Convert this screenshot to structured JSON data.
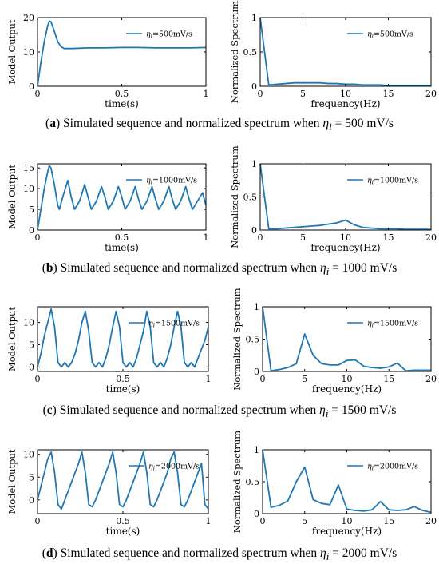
{
  "panels": [
    {
      "id": "a",
      "letter": "a",
      "caption_text": "Simulated sequence and normalized spectrum when",
      "eta_symbol": "η",
      "eta_sub": "i",
      "caption_value": "= 500 mV/s",
      "time": {
        "type": "line",
        "ylabel": "Model Output",
        "xlabel": "time(s)",
        "xlim": [
          0,
          1
        ],
        "ylim": [
          0,
          20
        ],
        "xticks": [
          0,
          0.5,
          1
        ],
        "yticks": [
          0,
          10,
          20
        ],
        "legend": "ηi=500mV/s",
        "legend_position": "top-right",
        "series": [
          {
            "x": [
              0,
              0.02,
              0.04,
              0.06,
              0.07,
              0.08,
              0.1,
              0.12,
              0.14,
              0.16,
              0.2,
              0.3,
              0.4,
              0.5,
              0.6,
              0.7,
              0.8,
              0.9,
              1.0
            ],
            "y": [
              0,
              7,
              13,
              17.5,
              19,
              18.8,
              16,
              13,
              11.5,
              11,
              11,
              11.2,
              11.2,
              11.3,
              11.3,
              11.2,
              11.2,
              11.2,
              11.3
            ]
          }
        ]
      },
      "spectrum": {
        "type": "line",
        "ylabel": "Normalized Spectrum",
        "xlabel": "frequency(Hz)",
        "xlim": [
          0,
          20
        ],
        "ylim": [
          0,
          1
        ],
        "xticks": [
          0,
          5,
          10,
          15,
          20
        ],
        "yticks": [
          0,
          0.5,
          1
        ],
        "legend": "ηi=500mV/s",
        "legend_position": "top-right",
        "series": [
          {
            "x": [
              0,
              1,
              2,
              3,
              4,
              5,
              6,
              7,
              8,
              9,
              10,
              11,
              12,
              13,
              14,
              15,
              16,
              17,
              18,
              19,
              20
            ],
            "y": [
              1,
              0.02,
              0.03,
              0.04,
              0.05,
              0.05,
              0.05,
              0.05,
              0.04,
              0.04,
              0.03,
              0.03,
              0.02,
              0.02,
              0.02,
              0.01,
              0.01,
              0.01,
              0.01,
              0.01,
              0.01
            ]
          }
        ]
      }
    },
    {
      "id": "b",
      "letter": "b",
      "caption_text": "Simulated sequence and normalized spectrum when",
      "eta_symbol": "η",
      "eta_sub": "i",
      "caption_value": "= 1000 mV/s",
      "time": {
        "type": "line",
        "ylabel": "Model Output",
        "xlabel": "time(s)",
        "xlim": [
          0,
          1
        ],
        "ylim": [
          0,
          16
        ],
        "xticks": [
          0,
          0.5,
          1
        ],
        "yticks": [
          0,
          5,
          10,
          15
        ],
        "legend": "ηi=1000mV/s",
        "legend_position": "top-right",
        "series": [
          {
            "x": [
              0,
              0.02,
              0.04,
              0.06,
              0.07,
              0.08,
              0.1,
              0.12,
              0.13,
              0.15,
              0.18,
              0.2,
              0.22,
              0.25,
              0.28,
              0.3,
              0.32,
              0.35,
              0.38,
              0.4,
              0.42,
              0.45,
              0.48,
              0.5,
              0.52,
              0.55,
              0.58,
              0.6,
              0.62,
              0.65,
              0.68,
              0.7,
              0.72,
              0.75,
              0.78,
              0.8,
              0.82,
              0.85,
              0.88,
              0.9,
              0.92,
              0.95,
              0.98,
              1.0
            ],
            "y": [
              0,
              5,
              10,
              14,
              15.5,
              15,
              11,
              6,
              5,
              8,
              12,
              8,
              5,
              7,
              11,
              8,
              5,
              7,
              10.5,
              8,
              5,
              7,
              10.5,
              8,
              5,
              7,
              10.5,
              7.5,
              5,
              7,
              10.5,
              7.5,
              5,
              7,
              10.5,
              7.5,
              5,
              7,
              10.5,
              7.5,
              5,
              7,
              9,
              6
            ]
          }
        ]
      },
      "spectrum": {
        "type": "line",
        "ylabel": "Normalized Spectrum",
        "xlabel": "frequency(Hz)",
        "xlim": [
          0,
          20
        ],
        "ylim": [
          0,
          1
        ],
        "xticks": [
          0,
          5,
          10,
          15,
          20
        ],
        "yticks": [
          0,
          0.5,
          1
        ],
        "legend": "ηi=1000mV/s",
        "legend_position": "top-right",
        "series": [
          {
            "x": [
              0,
              1,
              2,
              3,
              4,
              5,
              6,
              7,
              8,
              9,
              10,
              11,
              12,
              13,
              14,
              15,
              16,
              17,
              18,
              19,
              20
            ],
            "y": [
              1,
              0.02,
              0.02,
              0.03,
              0.04,
              0.05,
              0.06,
              0.07,
              0.09,
              0.11,
              0.15,
              0.08,
              0.04,
              0.03,
              0.02,
              0.02,
              0.02,
              0.01,
              0.01,
              0.01,
              0.01
            ]
          }
        ]
      }
    },
    {
      "id": "c",
      "letter": "c",
      "caption_text": "Simulated sequence and normalized spectrum when",
      "eta_symbol": "η",
      "eta_sub": "i",
      "caption_value": "= 1500 mV/s",
      "time": {
        "type": "line",
        "ylabel": "Model Output",
        "xlabel": "time(s)",
        "xlim": [
          0,
          1
        ],
        "ylim": [
          -1,
          13.5
        ],
        "xticks": [
          0,
          0.5,
          1
        ],
        "yticks": [
          0,
          5,
          10
        ],
        "legend": "ηi=1500mV/s",
        "legend_position": "top-right",
        "series": [
          {
            "x": [
              0,
              0.02,
              0.04,
              0.06,
              0.08,
              0.1,
              0.12,
              0.14,
              0.16,
              0.18,
              0.2,
              0.22,
              0.24,
              0.26,
              0.28,
              0.3,
              0.32,
              0.34,
              0.36,
              0.38,
              0.4,
              0.42,
              0.44,
              0.46,
              0.48,
              0.5,
              0.52,
              0.54,
              0.56,
              0.58,
              0.6,
              0.62,
              0.64,
              0.66,
              0.68,
              0.7,
              0.72,
              0.74,
              0.76,
              0.78,
              0.8,
              0.82,
              0.84,
              0.86,
              0.88,
              0.9,
              0.92,
              0.94,
              0.96,
              0.98,
              1.0
            ],
            "y": [
              0,
              3,
              7,
              10,
              13,
              9,
              1,
              0,
              1,
              0,
              1,
              3,
              6,
              10,
              12.5,
              8,
              1,
              0,
              1,
              0,
              2,
              5,
              9,
              12.5,
              9,
              1,
              0,
              1,
              0,
              2,
              5,
              8,
              12.5,
              9,
              1,
              0,
              1,
              0,
              2,
              5,
              9,
              12.5,
              9,
              1,
              0,
              1,
              0,
              2,
              4,
              6,
              9
            ]
          }
        ]
      },
      "spectrum": {
        "type": "line",
        "ylabel": "Normalized Spectrum",
        "xlabel": "frequency(Hz)",
        "xlim": [
          0,
          20
        ],
        "ylim": [
          0,
          1
        ],
        "xticks": [
          0,
          5,
          10,
          15,
          20
        ],
        "yticks": [
          0,
          0.5,
          1
        ],
        "legend": "ηi=1500mV/s",
        "legend_position": "top-right",
        "series": [
          {
            "x": [
              0,
              1,
              2,
              3,
              4,
              5,
              6,
              7,
              8,
              9,
              10,
              11,
              12,
              13,
              14,
              15,
              16,
              17,
              18,
              19,
              20
            ],
            "y": [
              1,
              0.01,
              0.03,
              0.06,
              0.12,
              0.58,
              0.25,
              0.12,
              0.1,
              0.1,
              0.17,
              0.18,
              0.08,
              0.06,
              0.05,
              0.07,
              0.13,
              0.01,
              0.02,
              0.02,
              0.02
            ]
          }
        ]
      }
    },
    {
      "id": "d",
      "letter": "d",
      "caption_text": "Simulated sequence and normalized spectrum when",
      "eta_symbol": "η",
      "eta_sub": "i",
      "caption_value": "= 2000 mV/s",
      "time": {
        "type": "line",
        "ylabel": "Model Output",
        "xlabel": "time(s)",
        "xlim": [
          0,
          1
        ],
        "ylim": [
          -3,
          11
        ],
        "xticks": [
          0,
          0.5,
          1
        ],
        "yticks": [
          0,
          5,
          10
        ],
        "legend": "ηi=2000mV/s",
        "legend_position": "top-right",
        "series": [
          {
            "x": [
              0,
              0.02,
              0.04,
              0.06,
              0.08,
              0.1,
              0.12,
              0.14,
              0.16,
              0.18,
              0.2,
              0.22,
              0.24,
              0.26,
              0.28,
              0.3,
              0.32,
              0.34,
              0.36,
              0.38,
              0.4,
              0.42,
              0.44,
              0.46,
              0.48,
              0.5,
              0.52,
              0.54,
              0.56,
              0.58,
              0.6,
              0.62,
              0.64,
              0.66,
              0.68,
              0.7,
              0.72,
              0.74,
              0.76,
              0.78,
              0.8,
              0.82,
              0.84,
              0.86,
              0.88,
              0.9,
              0.92,
              0.94,
              0.96,
              0.98,
              1.0
            ],
            "y": [
              0,
              3,
              6,
              9,
              10.5,
              6,
              -1,
              -2,
              0,
              2,
              4,
              6,
              8,
              10.5,
              6,
              -1,
              -1.5,
              0,
              2,
              4,
              6,
              8,
              10.5,
              6,
              -1,
              -1.5,
              0,
              2,
              4,
              6,
              8,
              10.5,
              6,
              -1,
              -1.5,
              0,
              2,
              4,
              6,
              9,
              10.5,
              6,
              -1,
              -1.5,
              0,
              2,
              4,
              6,
              8,
              -1,
              -2
            ]
          }
        ]
      },
      "spectrum": {
        "type": "line",
        "ylabel": "Normalized Spectrum",
        "xlabel": "frequency(Hz)",
        "xlim": [
          0,
          20
        ],
        "ylim": [
          0,
          1
        ],
        "xticks": [
          0,
          5,
          10,
          15,
          20
        ],
        "yticks": [
          0,
          0.5,
          1
        ],
        "legend": "ηi=2000mV/s",
        "legend_position": "top-right",
        "series": [
          {
            "x": [
              0,
              1,
              2,
              3,
              4,
              5,
              6,
              7,
              8,
              9,
              10,
              11,
              12,
              13,
              14,
              15,
              16,
              17,
              18,
              19,
              20
            ],
            "y": [
              1,
              0.1,
              0.13,
              0.2,
              0.5,
              0.73,
              0.22,
              0.16,
              0.14,
              0.45,
              0.07,
              0.05,
              0.04,
              0.06,
              0.19,
              0.06,
              0.05,
              0.06,
              0.11,
              0.05,
              0.02
            ]
          }
        ]
      }
    }
  ],
  "colors": {
    "line": "#1f77b4",
    "axis": "#000000"
  }
}
